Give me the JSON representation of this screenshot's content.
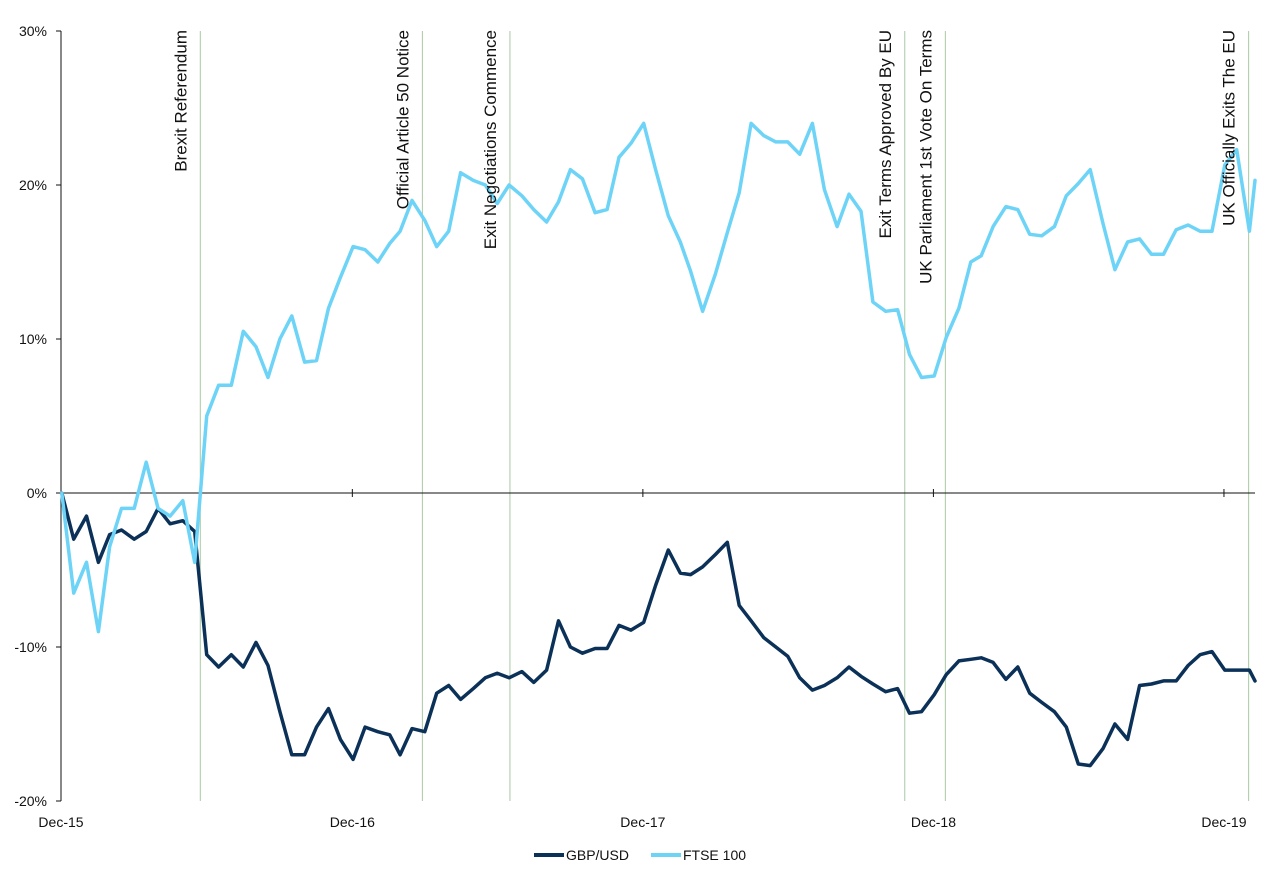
{
  "chart_data": {
    "type": "line",
    "title": "",
    "xlabel": "",
    "ylabel": "",
    "ylim": [
      -20,
      30
    ],
    "xlim": [
      "2015-12-31",
      "2020-02-08"
    ],
    "yticks": [
      "-20%",
      "-10%",
      "0%",
      "10%",
      "20%",
      "30%"
    ],
    "ytick_values": [
      -20,
      -10,
      0,
      10,
      20,
      30
    ],
    "xticks": [
      "Dec-15",
      "Dec-16",
      "Dec-17",
      "Dec-18",
      "Dec-19"
    ],
    "xtick_dates": [
      "2015-12-31",
      "2016-12-31",
      "2017-12-31",
      "2018-12-31",
      "2019-12-31"
    ],
    "grid": false,
    "legend_position": "bottom",
    "x": [
      "2016-01-01",
      "2016-01-16",
      "2016-02-01",
      "2016-02-16",
      "2016-03-01",
      "2016-03-16",
      "2016-04-01",
      "2016-04-16",
      "2016-05-01",
      "2016-05-16",
      "2016-06-01",
      "2016-06-16",
      "2016-07-01",
      "2016-07-16",
      "2016-08-01",
      "2016-08-16",
      "2016-09-01",
      "2016-09-16",
      "2016-10-01",
      "2016-10-16",
      "2016-11-01",
      "2016-11-16",
      "2016-12-01",
      "2016-12-16",
      "2017-01-01",
      "2017-01-16",
      "2017-02-01",
      "2017-02-16",
      "2017-03-01",
      "2017-03-16",
      "2017-04-01",
      "2017-04-16",
      "2017-05-01",
      "2017-05-16",
      "2017-06-01",
      "2017-06-16",
      "2017-07-01",
      "2017-07-16",
      "2017-08-01",
      "2017-08-16",
      "2017-09-01",
      "2017-09-16",
      "2017-10-01",
      "2017-10-16",
      "2017-11-01",
      "2017-11-16",
      "2017-12-01",
      "2017-12-16",
      "2018-01-01",
      "2018-01-16",
      "2018-02-01",
      "2018-02-16",
      "2018-03-01",
      "2018-03-16",
      "2018-04-01",
      "2018-04-16",
      "2018-05-01",
      "2018-05-16",
      "2018-06-01",
      "2018-06-16",
      "2018-07-01",
      "2018-07-16",
      "2018-08-01",
      "2018-08-16",
      "2018-09-01",
      "2018-09-16",
      "2018-10-01",
      "2018-10-16",
      "2018-11-01",
      "2018-11-16",
      "2018-12-01",
      "2018-12-16",
      "2019-01-01",
      "2019-01-16",
      "2019-02-01",
      "2019-02-16",
      "2019-03-01",
      "2019-03-16",
      "2019-04-01",
      "2019-04-16",
      "2019-05-01",
      "2019-05-16",
      "2019-06-01",
      "2019-06-16",
      "2019-07-01",
      "2019-07-16",
      "2019-08-01",
      "2019-08-16",
      "2019-09-01",
      "2019-09-16",
      "2019-10-01",
      "2019-10-16",
      "2019-11-01",
      "2019-11-16",
      "2019-12-01",
      "2019-12-16",
      "2020-01-01",
      "2020-01-16",
      "2020-02-01",
      "2020-02-08"
    ],
    "series": [
      {
        "name": "GBP/USD",
        "color": "#0b3158",
        "values": [
          0,
          -3,
          -1.5,
          -4.5,
          -2.7,
          -2.4,
          -3,
          -2.5,
          -1,
          -2,
          -1.8,
          -2.5,
          -10.5,
          -11.3,
          -10.5,
          -11.3,
          -9.7,
          -11.2,
          -14.2,
          -17,
          -17,
          -15.2,
          -14,
          -16,
          -17.3,
          -15.2,
          -15.5,
          -15.7,
          -17,
          -15.3,
          -15.5,
          -13,
          -12.5,
          -13.4,
          -12.7,
          -12,
          -11.7,
          -12,
          -11.6,
          -12.3,
          -11.5,
          -8.3,
          -10,
          -10.4,
          -10.1,
          -10.1,
          -8.6,
          -8.9,
          -8.4,
          -6,
          -3.7,
          -5.2,
          -5.3,
          -4.8,
          -4,
          -3.2,
          -7.3,
          -8.3,
          -9.4,
          -10,
          -10.6,
          -12,
          -12.8,
          -12.5,
          -12,
          -11.3,
          -11.9,
          -12.4,
          -12.9,
          -12.7,
          -14.3,
          -14.2,
          -13.1,
          -11.8,
          -10.9,
          -10.8,
          -10.7,
          -11,
          -12.1,
          -11.3,
          -13,
          -13.6,
          -14.2,
          -15.2,
          -17.6,
          -17.7,
          -16.6,
          -15,
          -16,
          -12.5,
          -12.4,
          -12.2,
          -12.2,
          -11.2,
          -10.5,
          -10.3,
          -11.5,
          -11.5,
          -11.5,
          -12.2
        ]
      },
      {
        "name": "FTSE 100",
        "color": "#6dd4f7",
        "values": [
          0,
          -6.5,
          -4.5,
          -9,
          -3.5,
          -1,
          -1,
          2,
          -1,
          -1.5,
          -0.5,
          -4.5,
          5,
          7,
          7,
          10.5,
          9.5,
          7.5,
          10,
          11.5,
          8.5,
          8.6,
          12,
          14,
          16,
          15.8,
          15,
          16.2,
          17,
          19,
          17.7,
          16,
          17,
          20.8,
          20.3,
          20,
          18.8,
          20,
          19.3,
          18.4,
          17.6,
          18.9,
          21,
          20.4,
          18.2,
          18.4,
          21.8,
          22.7,
          24,
          21,
          18,
          16.3,
          14.4,
          11.8,
          14.2,
          16.9,
          19.5,
          24,
          23.2,
          22.8,
          22.8,
          22,
          24,
          19.7,
          17.3,
          19.4,
          18.3,
          12.4,
          11.8,
          11.9,
          9,
          7.5,
          7.6,
          10.1,
          12,
          15,
          15.4,
          17.3,
          18.6,
          18.4,
          16.8,
          16.7,
          17.3,
          19.3,
          20.1,
          21,
          17.5,
          14.5,
          16.3,
          16.5,
          15.5,
          15.5,
          17.1,
          17.4,
          17,
          17,
          21.3,
          22.3,
          17,
          20.3
        ]
      }
    ],
    "annotations": [
      {
        "label": "Brexit Referendum",
        "date": "2016-06-23"
      },
      {
        "label": "Official Article 50 Notice",
        "date": "2017-03-29"
      },
      {
        "label": "Exit Negotiations Commence",
        "date": "2017-07-17"
      },
      {
        "label": "Exit Terms Approved By EU",
        "date": "2018-11-25"
      },
      {
        "label": "UK Parliament 1st Vote On Terms",
        "date": "2019-01-15"
      },
      {
        "label": "UK Officially Exits The EU",
        "date": "2020-01-31"
      }
    ]
  },
  "colors": {
    "event_line": "#a9c9a4",
    "axis": "#111111"
  }
}
